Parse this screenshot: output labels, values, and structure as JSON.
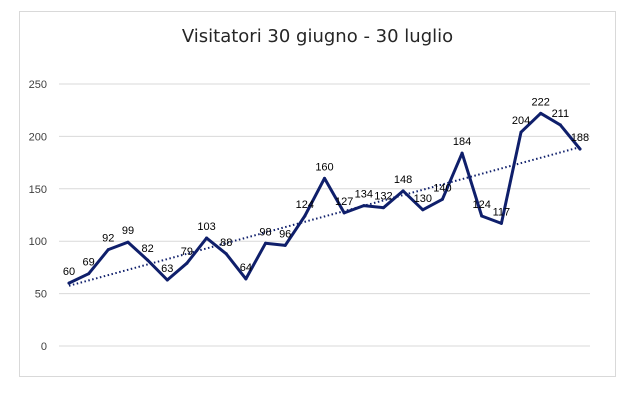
{
  "chart_data": {
    "type": "line",
    "title": "Visitatori 30 giugno - 30 luglio",
    "xlabel": "",
    "ylabel": "",
    "ylim": [
      0,
      250
    ],
    "y_ticks": [
      "0",
      "50",
      "100",
      "150",
      "200",
      "250"
    ],
    "grid": true,
    "legend": "none",
    "trendline": "linear",
    "series": [
      {
        "values": [
          60,
          69,
          92,
          99,
          82,
          63,
          79,
          103,
          88,
          64,
          98,
          96,
          124,
          160,
          127,
          134,
          132,
          148,
          130,
          140,
          184,
          124,
          117,
          204,
          222,
          211,
          188
        ],
        "labels": [
          "60",
          "69",
          "92",
          "99",
          "82",
          "63",
          "79",
          "103",
          "88",
          "64",
          "98",
          "96",
          "124",
          "160",
          "127",
          "134",
          "132",
          "148",
          "130",
          "140",
          "184",
          "124",
          "117",
          "204",
          "222",
          "211",
          "188"
        ]
      }
    ],
    "colors": {
      "line": "#0f1f6b",
      "trend": "#0f1f6b",
      "grid": "#d9d9d9",
      "axis_text": "#404040"
    }
  }
}
